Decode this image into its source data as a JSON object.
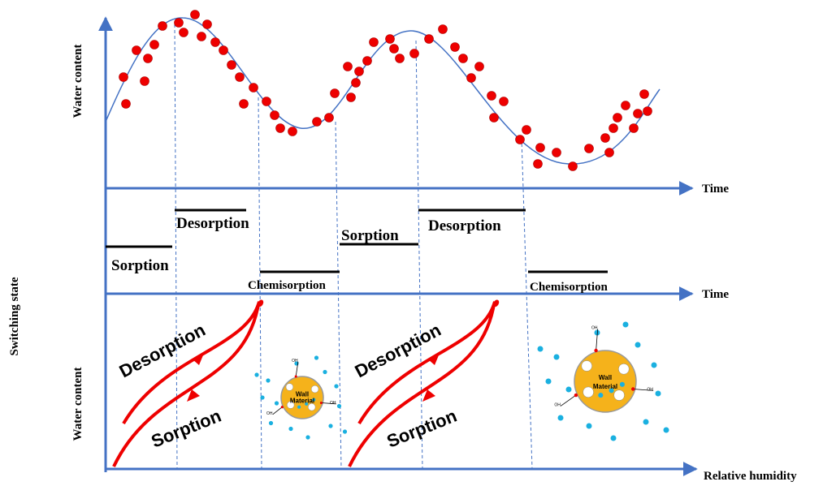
{
  "top_panel": {
    "y_label": "Water content",
    "x_label": "Time"
  },
  "state_panel": {
    "y_label": "Switching state",
    "x_label": "Time",
    "states": [
      "Sorption",
      "Desorption",
      "Chemisorption",
      "Sorption",
      "Desorption",
      "Chemisorption"
    ]
  },
  "bottom_panel": {
    "y_label": "Water content",
    "x_label": "Relative humidity",
    "loops": [
      {
        "upper": "Desorption",
        "lower": "Sorption"
      },
      {
        "upper": "Desorption",
        "lower": "Sorption"
      }
    ],
    "particles": [
      {
        "label_lines": [
          "Wall",
          "Material"
        ],
        "groups": [
          "OH",
          "OH",
          "OH"
        ]
      },
      {
        "label_lines": [
          "Wall",
          "Material"
        ],
        "groups": [
          "OH",
          "OH",
          "OH"
        ]
      }
    ]
  }
}
